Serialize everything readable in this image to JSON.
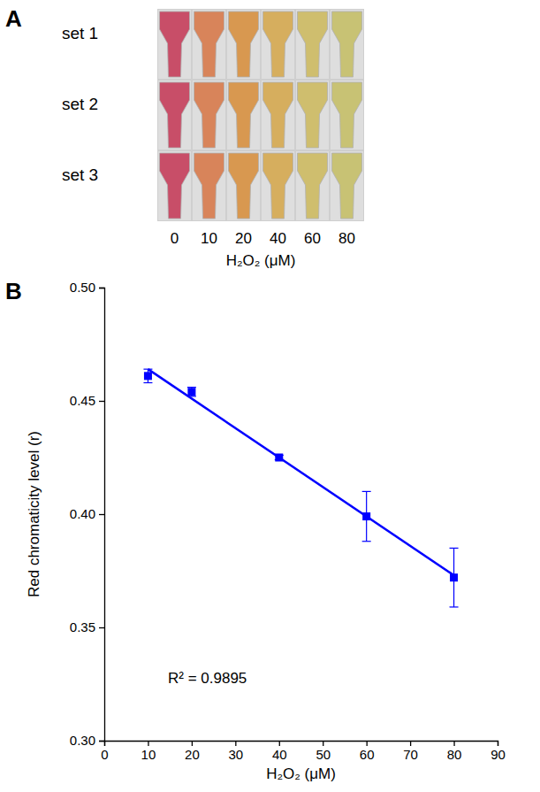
{
  "chart_data": [
    {
      "type": "swatch",
      "panel": "A",
      "rows": [
        "set 1",
        "set 2",
        "set 3"
      ],
      "categories": [
        0,
        10,
        20,
        40,
        60,
        80
      ],
      "colors": [
        "#c84e68",
        "#d8845a",
        "#d89850",
        "#d6ae5e",
        "#cfbe6e",
        "#c8c274"
      ],
      "xlabel": "H₂O₂ (μM)"
    },
    {
      "type": "scatter",
      "panel": "B",
      "xlabel": "H₂O₂ (μM)",
      "ylabel": "Red chromaticity level (r)",
      "x": [
        10,
        20,
        40,
        60,
        80
      ],
      "series": [
        {
          "type": "scatter",
          "marker": "square",
          "color": "#0000ff",
          "values": [
            0.461,
            0.454,
            0.425,
            0.399,
            0.372
          ],
          "error": [
            0.003,
            0.002,
            0.001,
            0.011,
            0.013
          ]
        },
        {
          "type": "line",
          "line_style": "solid",
          "color": "#0000ff",
          "x": [
            10,
            80
          ],
          "values": [
            0.464,
            0.373
          ]
        }
      ],
      "annotations": [
        "R² = 0.9895"
      ],
      "xlim": [
        0,
        90
      ],
      "xticks": [
        0,
        10,
        20,
        30,
        40,
        50,
        60,
        70,
        80,
        90
      ],
      "ylim": [
        0.3,
        0.5
      ],
      "yticks": [
        {
          "value": 0.3,
          "label": "0.30"
        },
        0.35,
        {
          "value": 0.4,
          "label": "0.40"
        },
        0.45,
        {
          "value": 0.5,
          "label": "0.50"
        }
      ]
    }
  ]
}
